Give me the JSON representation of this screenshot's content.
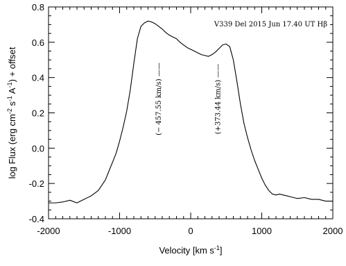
{
  "chart_data": {
    "type": "line",
    "title": "",
    "ylim": [
      -0.4,
      0.8
    ],
    "xlim": [
      -2000,
      2000
    ],
    "x_ticks": [
      -2000,
      -1000,
      0,
      1000,
      2000
    ],
    "x_tick_labels": [
      "-2000",
      "-1000",
      "0",
      "1000",
      "2000"
    ],
    "y_ticks": [
      -0.4,
      -0.2,
      0.0,
      0.2,
      0.4,
      0.6,
      0.8
    ],
    "y_tick_labels": [
      "-0.4",
      "-0.2",
      "0.0",
      "0.2",
      "0.4",
      "0.6",
      "0.8"
    ],
    "xlabel": {
      "main": "Velocity [km s",
      "sup": "-1",
      "close": "]"
    },
    "ylabel": {
      "p1": "log Flux (erg cm",
      "s1": "-2",
      "p2": " s",
      "s2": "-1",
      "p3": " A",
      "s3": "-1",
      "p4": ") + offset"
    },
    "annotation_title": "V339 Del 2015 Jun 17.40 UT Hβ",
    "annotations": [
      {
        "label": "(− 457.55 km/s) ——",
        "x": -457.55
      },
      {
        "label": "(+373.44 km/s) ——",
        "x": 373.44
      }
    ],
    "series": [
      {
        "x": [
          -2000,
          -1900,
          -1800,
          -1700,
          -1600,
          -1500,
          -1400,
          -1300,
          -1250,
          -1200,
          -1150,
          -1100,
          -1050,
          -1000,
          -950,
          -900,
          -850,
          -800,
          -750,
          -700,
          -650,
          -600,
          -550,
          -500,
          -450,
          -400,
          -350,
          -300,
          -250,
          -200,
          -150,
          -100,
          -50,
          0,
          50,
          100,
          150,
          200,
          250,
          300,
          350,
          400,
          450,
          500,
          550,
          600,
          650,
          700,
          750,
          800,
          850,
          900,
          950,
          1000,
          1050,
          1100,
          1150,
          1200,
          1250,
          1300,
          1350,
          1400,
          1500,
          1600,
          1700,
          1800,
          1900,
          2000
        ],
        "y": [
          -0.31,
          -0.31,
          -0.305,
          -0.295,
          -0.31,
          -0.29,
          -0.27,
          -0.24,
          -0.21,
          -0.18,
          -0.13,
          -0.08,
          -0.03,
          0.04,
          0.12,
          0.21,
          0.33,
          0.48,
          0.62,
          0.69,
          0.71,
          0.72,
          0.715,
          0.705,
          0.69,
          0.675,
          0.655,
          0.64,
          0.63,
          0.62,
          0.6,
          0.585,
          0.57,
          0.56,
          0.55,
          0.54,
          0.53,
          0.525,
          0.52,
          0.53,
          0.545,
          0.565,
          0.585,
          0.59,
          0.575,
          0.5,
          0.38,
          0.25,
          0.14,
          0.06,
          -0.01,
          -0.07,
          -0.12,
          -0.17,
          -0.21,
          -0.24,
          -0.26,
          -0.265,
          -0.26,
          -0.265,
          -0.27,
          -0.275,
          -0.285,
          -0.28,
          -0.29,
          -0.29,
          -0.3,
          -0.3
        ]
      }
    ]
  }
}
